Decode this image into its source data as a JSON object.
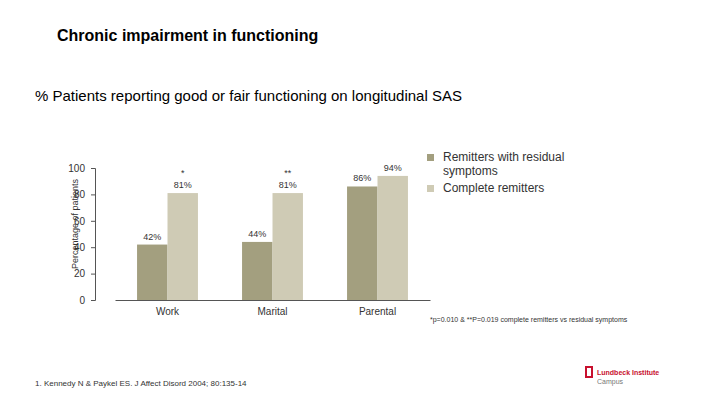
{
  "chart_data": {
    "type": "bar",
    "title": "Chronic impairment in functioning",
    "subtitle": "% Patients reporting good or fair functioning on longitudinal SAS",
    "y_label": "Percentage of patients",
    "categories": [
      "Work",
      "Marital",
      "Parental"
    ],
    "series": [
      {
        "name": "Remitters with residual symptoms",
        "color": "#a39f7f",
        "values": [
          42,
          44,
          86
        ],
        "value_labels": [
          "42%",
          "44%",
          "86%"
        ]
      },
      {
        "name": "Complete remitters",
        "color": "#cfcbb5",
        "values": [
          81,
          81,
          94
        ],
        "value_labels": [
          "81%",
          "81%",
          "94%"
        ]
      }
    ],
    "significance": [
      "*",
      "**",
      null
    ],
    "ylim": [
      0,
      100
    ],
    "yticks": [
      0,
      20,
      40,
      60,
      80,
      100
    ],
    "grid": false,
    "legend": "right",
    "data_labels": true,
    "footnote": "*p=0.010 & **P=0.019 complete remitters vs residual symptoms",
    "source": "1. Kennedy N & Paykel ES. J Affect Disord 2004; 80:135-14",
    "logo": [
      "Lundbeck Institute",
      "Campus"
    ]
  }
}
